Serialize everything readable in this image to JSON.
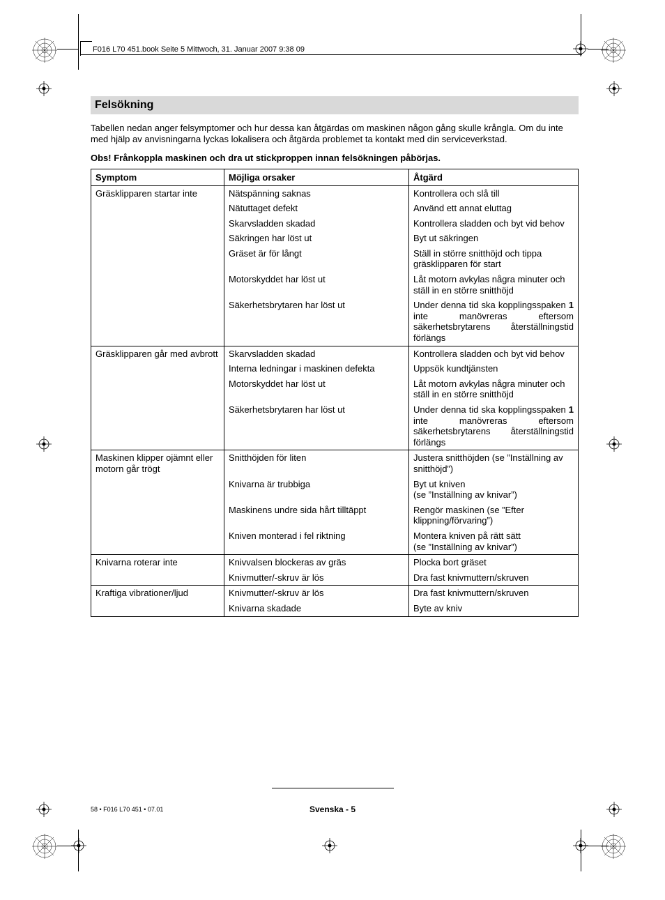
{
  "header": {
    "running_head": "F016 L70 451.book  Seite 5  Mittwoch, 31. Januar 2007  9:38 09"
  },
  "section": {
    "title": "Felsökning",
    "intro": "Tabellen nedan anger felsymptomer och hur dessa kan åtgärdas om maskinen någon gång skulle krångla. Om du inte med hjälp av anvisningarna lyckas lokalisera och åtgärda problemet ta kontakt med din serviceverkstad.",
    "warning": "Obs! Frånkoppla maskinen och dra ut stickproppen innan felsökningen påbörjas."
  },
  "table": {
    "headers": {
      "symptom": "Symptom",
      "cause": "Möjliga orsaker",
      "action": "Åtgärd"
    },
    "groups": [
      {
        "symptom": "Gräsklipparen startar inte",
        "rows": [
          {
            "cause": "Nätspänning saknas",
            "action": "Kontrollera och slå till"
          },
          {
            "cause": "Nätuttaget defekt",
            "action": "Använd ett annat eluttag"
          },
          {
            "cause": "Skarvsladden skadad",
            "action": "Kontrollera sladden och byt vid behov"
          },
          {
            "cause": "Säkringen har löst ut",
            "action": "Byt ut säkringen"
          },
          {
            "cause": "Gräset är för långt",
            "action": "Ställ in större snitthöjd och tippa gräsklipparen för start"
          },
          {
            "cause": "Motorskyddet har löst ut",
            "action": "Låt motorn avkylas några minuter och ställ in en större snitthöjd"
          },
          {
            "cause": "Säkerhetsbrytaren har löst ut",
            "action_html": "Under denna tid ska kopplingsspaken <b>1</b> inte manövreras eftersom säkerhetsbrytarens återställningstid förlängs"
          }
        ]
      },
      {
        "symptom": "Gräsklipparen går med avbrott",
        "rows": [
          {
            "cause": "Skarvsladden skadad",
            "action": "Kontrollera sladden och byt vid behov"
          },
          {
            "cause": "Interna ledningar i maskinen defekta",
            "action": "Uppsök kundtjänsten"
          },
          {
            "cause": "Motorskyddet har löst ut",
            "action": "Låt motorn avkylas några minuter och ställ in en större snitthöjd"
          },
          {
            "cause": "Säkerhetsbrytaren har löst ut",
            "action_html": "Under denna tid ska kopplingsspaken <b>1</b> inte manövreras eftersom säkerhetsbrytarens återställningstid förlängs"
          }
        ]
      },
      {
        "symptom": "Maskinen klipper ojämnt eller\nmotorn går trögt",
        "rows": [
          {
            "cause": "Snitthöjden för liten",
            "action": "Justera snitthöjden (se ”Inställning av snitthöjd”)"
          },
          {
            "cause": "Knivarna är trubbiga",
            "action": "Byt ut kniven\n(se ”Inställning av knivar”)"
          },
          {
            "cause": "Maskinens undre sida hårt tilltäppt",
            "action": "Rengör maskinen (se ”Efter klippning/förvaring”)"
          },
          {
            "cause": "Kniven monterad i fel riktning",
            "action": "Montera kniven på rätt sätt\n(se ”Inställning av knivar”)"
          }
        ]
      },
      {
        "symptom": "Knivarna roterar inte",
        "rows": [
          {
            "cause": "Knivvalsen blockeras av gräs",
            "action": "Plocka bort gräset"
          },
          {
            "cause": "Knivmutter/-skruv är lös",
            "action": "Dra fast knivmuttern/skruven"
          }
        ]
      },
      {
        "symptom": "Kraftiga vibrationer/ljud",
        "rows": [
          {
            "cause": "Knivmutter/-skruv är lös",
            "action": "Dra fast knivmuttern/skruven"
          },
          {
            "cause": "Knivarna skadade",
            "action": "Byte av kniv"
          }
        ]
      }
    ]
  },
  "footer": {
    "left": "58 • F016 L70 451 • 07.01",
    "center": "Svenska - 5"
  },
  "style": {
    "colors": {
      "section_bg": "#d9d9d9",
      "text": "#000000",
      "border": "#000000",
      "background": "#ffffff"
    },
    "fonts": {
      "body_size_pt": 10,
      "title_size_pt": 12,
      "footer_small_pt": 7
    }
  }
}
